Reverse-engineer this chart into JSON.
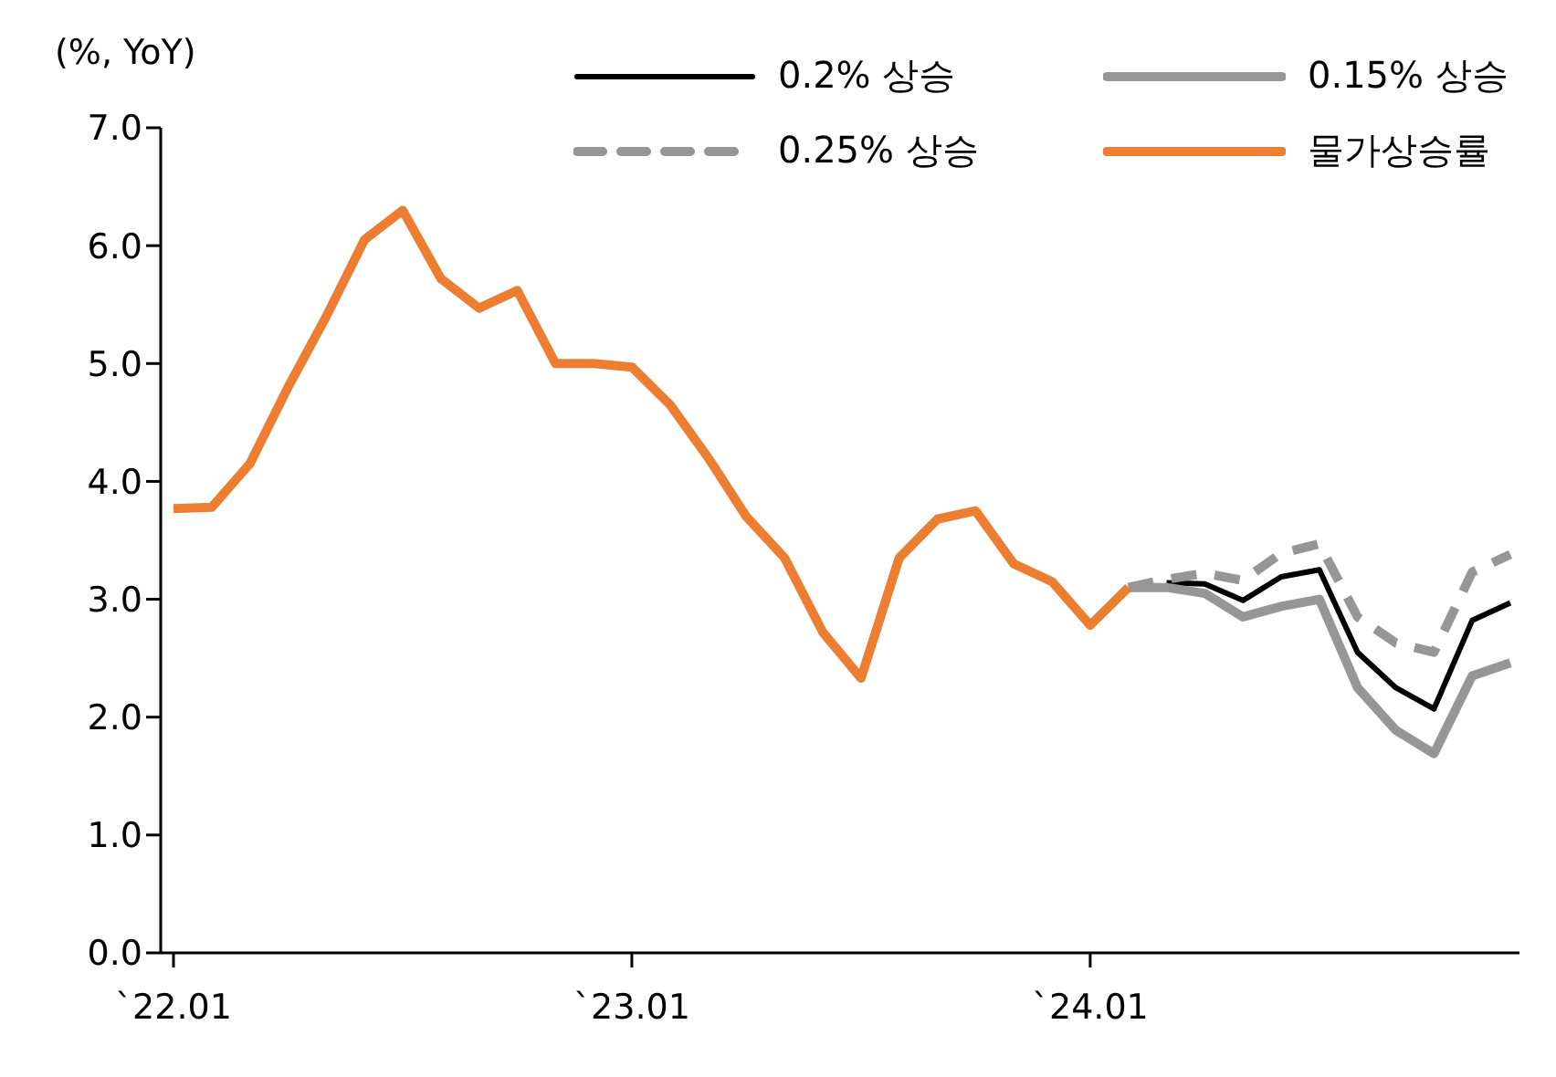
{
  "chart_data": {
    "type": "line",
    "ylabel": "(%, YoY)",
    "categories": [
      "`22.01",
      null,
      null,
      null,
      null,
      null,
      null,
      null,
      null,
      null,
      null,
      null,
      "`23.01",
      null,
      null,
      null,
      null,
      null,
      null,
      null,
      null,
      null,
      null,
      null,
      "`24.01",
      null,
      null,
      null,
      null,
      null,
      null,
      null,
      null,
      null,
      null,
      null
    ],
    "series": [
      {
        "name": "0.2% 상승",
        "color": "#000000",
        "line_style": "solid",
        "values": [
          null,
          null,
          null,
          null,
          null,
          null,
          null,
          null,
          null,
          null,
          null,
          null,
          null,
          null,
          null,
          null,
          null,
          null,
          null,
          null,
          null,
          null,
          null,
          null,
          null,
          null,
          3.14,
          3.13,
          2.99,
          3.19,
          3.25,
          2.55,
          2.25,
          2.07,
          2.82,
          2.97
        ]
      },
      {
        "name": "0.15% 상승",
        "color": "#969696",
        "line_style": "solid",
        "values": [
          null,
          null,
          null,
          null,
          null,
          null,
          null,
          null,
          null,
          null,
          null,
          null,
          null,
          null,
          null,
          null,
          null,
          null,
          null,
          null,
          null,
          null,
          null,
          null,
          null,
          3.1,
          3.1,
          3.05,
          2.85,
          2.94,
          3.0,
          2.25,
          1.89,
          1.69,
          2.35,
          2.46
        ]
      },
      {
        "name": "0.25% 상승",
        "color": "#969696",
        "line_style": "dashed",
        "values": [
          null,
          null,
          null,
          null,
          null,
          null,
          null,
          null,
          null,
          null,
          null,
          null,
          null,
          null,
          null,
          null,
          null,
          null,
          null,
          null,
          null,
          null,
          null,
          null,
          null,
          3.1,
          3.17,
          3.22,
          3.16,
          3.39,
          3.47,
          2.85,
          2.63,
          2.55,
          3.23,
          3.38
        ]
      },
      {
        "name": "물가상승률",
        "color": "#ed7d31",
        "line_style": "solid",
        "values": [
          3.77,
          3.78,
          4.15,
          4.8,
          5.4,
          6.05,
          6.3,
          5.72,
          5.47,
          5.62,
          5.0,
          5.0,
          4.97,
          4.65,
          4.2,
          3.7,
          3.35,
          2.72,
          2.33,
          3.35,
          3.68,
          3.75,
          3.3,
          3.15,
          2.78,
          3.1,
          null,
          null,
          null,
          null,
          null,
          null,
          null,
          null,
          null,
          null
        ]
      }
    ],
    "ylim": [
      0,
      7
    ],
    "yticks": [
      {
        "value": 0,
        "label": "0.0"
      },
      {
        "value": 1,
        "label": "1.0"
      },
      {
        "value": 2,
        "label": "2.0"
      },
      {
        "value": 3,
        "label": "3.0"
      },
      {
        "value": 4,
        "label": "4.0"
      },
      {
        "value": 5,
        "label": "5.0"
      },
      {
        "value": 6,
        "label": "6.0"
      },
      {
        "value": 7,
        "label": "7.0"
      }
    ],
    "grid": false,
    "legend": "top right",
    "marker": "none"
  }
}
